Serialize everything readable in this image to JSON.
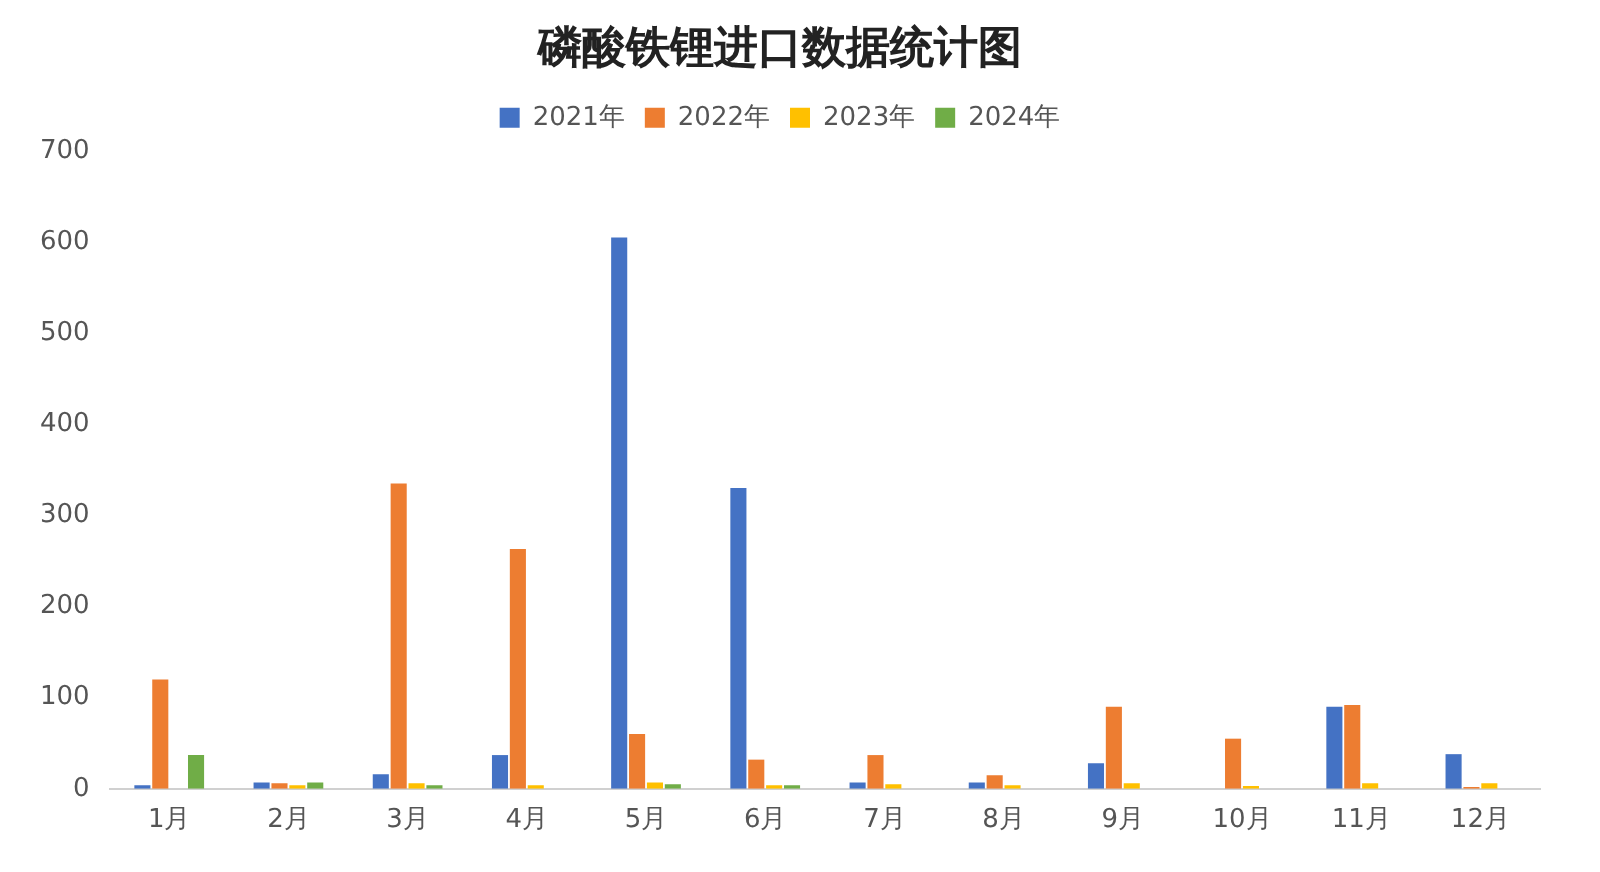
{
  "chart_data": {
    "type": "bar",
    "title": "磷酸铁锂进口数据统计图",
    "categories": [
      "1月",
      "2月",
      "3月",
      "4月",
      "5月",
      "6月",
      "7月",
      "8月",
      "9月",
      "10月",
      "11月",
      "12月"
    ],
    "series": [
      {
        "name": "2021年",
        "color": "#4472c4",
        "values": [
          4,
          7,
          16,
          37,
          605,
          330,
          7,
          7,
          28,
          null,
          90,
          38
        ]
      },
      {
        "name": "2022年",
        "color": "#ed7d31",
        "values": [
          120,
          6,
          335,
          263,
          60,
          32,
          37,
          15,
          90,
          55,
          92,
          2
        ]
      },
      {
        "name": "2023年",
        "color": "#ffc000",
        "values": [
          null,
          4,
          6,
          4,
          7,
          4,
          5,
          4,
          6,
          3,
          6,
          6
        ]
      },
      {
        "name": "2024年",
        "color": "#70ad47",
        "values": [
          37,
          7,
          4,
          null,
          5,
          4,
          null,
          null,
          null,
          null,
          null,
          null
        ]
      }
    ],
    "ylim": [
      0,
      700
    ],
    "yticks": [
      0,
      100,
      200,
      300,
      400,
      500,
      600,
      700
    ],
    "grid": false,
    "legend": "top"
  }
}
